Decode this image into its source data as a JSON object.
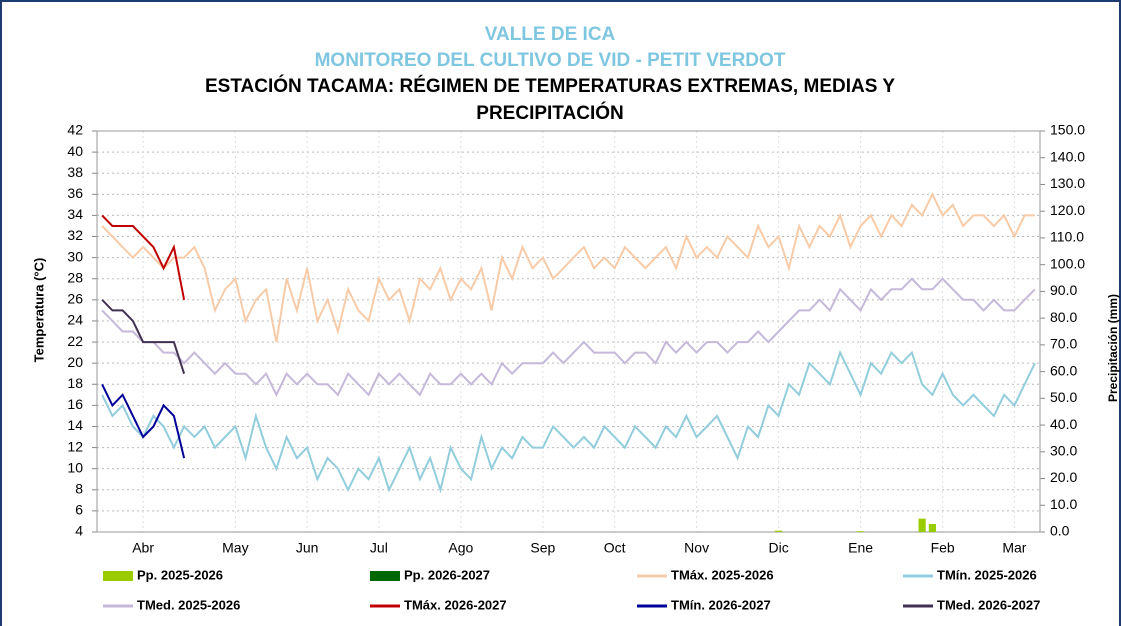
{
  "chart_data": {
    "type": "line",
    "subtitles": [
      "VALLE DE ICA",
      "MONITOREO DEL CULTIVO DE VID - PETIT VERDOT"
    ],
    "title": [
      "ESTACIÓN TACAMA: RÉGIMEN DE TEMPERATURAS EXTREMAS, MEDIAS Y",
      "PRECIPITACIÓN"
    ],
    "ylabel": "Temperatura (°C)",
    "y2label": "Precipitación (mm)",
    "ylim": [
      4,
      42
    ],
    "yticks": [
      4,
      6,
      8,
      10,
      12,
      14,
      16,
      18,
      20,
      22,
      24,
      26,
      28,
      30,
      32,
      34,
      36,
      38,
      40,
      42
    ],
    "y2lim": [
      0,
      150
    ],
    "y2ticks": [
      {
        "value": 0,
        "label": "0.0"
      },
      {
        "value": 10,
        "label": "10.0"
      },
      {
        "value": 20,
        "label": "20.0"
      },
      {
        "value": 30,
        "label": "30.0"
      },
      {
        "value": 40,
        "label": "40.0"
      },
      {
        "value": 50,
        "label": "50.0"
      },
      {
        "value": 60,
        "label": "60.0"
      },
      {
        "value": 70,
        "label": "70.0"
      },
      {
        "value": 80,
        "label": "80.0"
      },
      {
        "value": 90,
        "label": "90.0"
      },
      {
        "value": 100,
        "label": "100.0"
      },
      {
        "value": 110,
        "label": "110.0"
      },
      {
        "value": 120,
        "label": "120.0"
      },
      {
        "value": 130,
        "label": "130.0"
      },
      {
        "value": 140,
        "label": "140.0"
      },
      {
        "value": 150,
        "label": "150.0"
      }
    ],
    "grid": true,
    "categories": [
      null,
      null,
      null,
      null,
      "Abr",
      null,
      null,
      null,
      null,
      null,
      null,
      null,
      null,
      "May",
      null,
      null,
      null,
      null,
      null,
      null,
      "Jun",
      null,
      null,
      null,
      null,
      null,
      null,
      "Jul",
      null,
      null,
      null,
      null,
      null,
      null,
      null,
      "Ago",
      null,
      null,
      null,
      null,
      null,
      null,
      null,
      "Sep",
      null,
      null,
      null,
      null,
      null,
      null,
      "Oct",
      null,
      null,
      null,
      null,
      null,
      null,
      null,
      "Nov",
      null,
      null,
      null,
      null,
      null,
      null,
      null,
      "Dic",
      null,
      null,
      null,
      null,
      null,
      null,
      null,
      "Ene",
      null,
      null,
      null,
      null,
      null,
      null,
      null,
      "Feb",
      null,
      null,
      null,
      null,
      null,
      null,
      "Mar",
      null,
      null
    ],
    "series": [
      {
        "name": "Pp. 2025-2026",
        "type": "bar",
        "axis": "y2",
        "color": "#99cc00",
        "values": [
          0,
          0,
          0,
          0,
          0,
          0,
          0,
          0,
          0,
          0,
          0,
          0,
          0,
          0,
          0,
          0,
          0,
          0,
          0,
          0,
          0,
          0,
          0,
          0,
          0,
          0,
          0,
          0,
          0,
          0,
          0,
          0,
          0,
          0,
          0,
          0,
          0,
          0,
          0,
          0,
          0,
          0,
          0,
          0,
          0,
          0,
          0,
          0,
          0,
          0,
          0,
          0,
          0,
          0,
          0,
          0,
          0,
          0,
          0,
          0,
          0,
          0,
          0,
          0,
          0,
          0,
          0.5,
          0,
          0,
          0,
          0,
          0,
          0,
          0,
          0.3,
          0,
          0,
          0,
          0,
          0,
          5,
          3,
          0,
          0,
          0,
          0,
          0,
          0,
          0,
          0,
          0,
          0
        ]
      },
      {
        "name": "Pp. 2026-2027",
        "type": "bar",
        "axis": "y2",
        "color": "#006600",
        "values": [
          0,
          0,
          0,
          0,
          0,
          0,
          0,
          0,
          0,
          null,
          null,
          null,
          null,
          null,
          null,
          null,
          null,
          null,
          null,
          null,
          null,
          null,
          null,
          null,
          null,
          null,
          null,
          null,
          null,
          null,
          null,
          null,
          null,
          null,
          null,
          null,
          null,
          null,
          null,
          null,
          null,
          null,
          null,
          null,
          null,
          null,
          null,
          null,
          null,
          null,
          null,
          null,
          null,
          null,
          null,
          null,
          null,
          null,
          null,
          null,
          null,
          null,
          null,
          null,
          null,
          null,
          null,
          null,
          null,
          null,
          null,
          null,
          null,
          null,
          null,
          null,
          null,
          null,
          null,
          null,
          null,
          null,
          null,
          null,
          null,
          null,
          null,
          null,
          null,
          null,
          null,
          null
        ]
      },
      {
        "name": "TMáx. 2025-2026",
        "type": "line",
        "color": "#f8cba8",
        "values": [
          33,
          32,
          31,
          30,
          31,
          30,
          29,
          30,
          30,
          31,
          29,
          25,
          27,
          28,
          24,
          26,
          27,
          22,
          28,
          25,
          29,
          24,
          26,
          23,
          27,
          25,
          24,
          28,
          26,
          27,
          24,
          28,
          27,
          29,
          26,
          28,
          27,
          29,
          25,
          30,
          28,
          31,
          29,
          30,
          28,
          29,
          30,
          31,
          29,
          30,
          29,
          31,
          30,
          29,
          30,
          31,
          29,
          32,
          30,
          31,
          30,
          32,
          31,
          30,
          33,
          31,
          32,
          29,
          33,
          31,
          33,
          32,
          34,
          31,
          33,
          34,
          32,
          34,
          33,
          35,
          34,
          36,
          34,
          35,
          33,
          34,
          34,
          33,
          34,
          32,
          34,
          34
        ]
      },
      {
        "name": "TMín. 2025-2026",
        "type": "line",
        "color": "#92cddc",
        "values": [
          17,
          15,
          16,
          14,
          13,
          15,
          14,
          12,
          14,
          13,
          14,
          12,
          13,
          14,
          11,
          15,
          12,
          10,
          13,
          11,
          12,
          9,
          11,
          10,
          8,
          10,
          9,
          11,
          8,
          10,
          12,
          9,
          11,
          8,
          12,
          10,
          9,
          13,
          10,
          12,
          11,
          13,
          12,
          12,
          14,
          13,
          12,
          13,
          12,
          14,
          13,
          12,
          14,
          13,
          12,
          14,
          13,
          15,
          13,
          14,
          15,
          13,
          11,
          14,
          13,
          16,
          15,
          18,
          17,
          20,
          19,
          18,
          21,
          19,
          17,
          20,
          19,
          21,
          20,
          21,
          18,
          17,
          19,
          17,
          16,
          17,
          16,
          15,
          17,
          16,
          18,
          20
        ]
      },
      {
        "name": "TMed. 2025-2026",
        "type": "line",
        "color": "#c5b8d9",
        "values": [
          25,
          24,
          23,
          23,
          22,
          22,
          21,
          21,
          20,
          21,
          20,
          19,
          20,
          19,
          19,
          18,
          19,
          17,
          19,
          18,
          19,
          18,
          18,
          17,
          19,
          18,
          17,
          19,
          18,
          19,
          18,
          17,
          19,
          18,
          18,
          19,
          18,
          19,
          18,
          20,
          19,
          20,
          20,
          20,
          21,
          20,
          21,
          22,
          21,
          21,
          21,
          20,
          21,
          21,
          20,
          22,
          21,
          22,
          21,
          22,
          22,
          21,
          22,
          22,
          23,
          22,
          23,
          24,
          25,
          25,
          26,
          25,
          27,
          26,
          25,
          27,
          26,
          27,
          27,
          28,
          27,
          27,
          28,
          27,
          26,
          26,
          25,
          26,
          25,
          25,
          26,
          27
        ]
      },
      {
        "name": "TMáx. 2026-2027",
        "type": "line",
        "color": "#c00000",
        "values": [
          34,
          33,
          33,
          33,
          32,
          31,
          29,
          31,
          26,
          null,
          null,
          null,
          null,
          null,
          null,
          null,
          null,
          null,
          null,
          null,
          null,
          null,
          null,
          null,
          null,
          null,
          null,
          null,
          null,
          null,
          null,
          null,
          null,
          null,
          null,
          null,
          null,
          null,
          null,
          null,
          null,
          null,
          null,
          null,
          null,
          null,
          null,
          null,
          null,
          null,
          null,
          null,
          null,
          null,
          null,
          null,
          null,
          null,
          null,
          null,
          null,
          null,
          null,
          null,
          null,
          null,
          null,
          null,
          null,
          null,
          null,
          null,
          null,
          null,
          null,
          null,
          null,
          null,
          null,
          null,
          null,
          null,
          null,
          null,
          null,
          null,
          null,
          null,
          null,
          null,
          null,
          null
        ]
      },
      {
        "name": "TMín. 2026-2027",
        "type": "line",
        "color": "#000099",
        "values": [
          18,
          16,
          17,
          15,
          13,
          14,
          16,
          15,
          11,
          null,
          null,
          null,
          null,
          null,
          null,
          null,
          null,
          null,
          null,
          null,
          null,
          null,
          null,
          null,
          null,
          null,
          null,
          null,
          null,
          null,
          null,
          null,
          null,
          null,
          null,
          null,
          null,
          null,
          null,
          null,
          null,
          null,
          null,
          null,
          null,
          null,
          null,
          null,
          null,
          null,
          null,
          null,
          null,
          null,
          null,
          null,
          null,
          null,
          null,
          null,
          null,
          null,
          null,
          null,
          null,
          null,
          null,
          null,
          null,
          null,
          null,
          null,
          null,
          null,
          null,
          null,
          null,
          null,
          null,
          null,
          null,
          null,
          null,
          null,
          null,
          null,
          null,
          null,
          null,
          null,
          null,
          null
        ]
      },
      {
        "name": "TMed. 2026-2027",
        "type": "line",
        "color": "#403151",
        "values": [
          26,
          25,
          25,
          24,
          22,
          22,
          22,
          22,
          19,
          null,
          null,
          null,
          null,
          null,
          null,
          null,
          null,
          null,
          null,
          null,
          null,
          null,
          null,
          null,
          null,
          null,
          null,
          null,
          null,
          null,
          null,
          null,
          null,
          null,
          null,
          null,
          null,
          null,
          null,
          null,
          null,
          null,
          null,
          null,
          null,
          null,
          null,
          null,
          null,
          null,
          null,
          null,
          null,
          null,
          null,
          null,
          null,
          null,
          null,
          null,
          null,
          null,
          null,
          null,
          null,
          null,
          null,
          null,
          null,
          null,
          null,
          null,
          null,
          null,
          null,
          null,
          null,
          null,
          null,
          null,
          null,
          null,
          null,
          null,
          null,
          null,
          null,
          null,
          null,
          null,
          null,
          null
        ]
      }
    ]
  }
}
